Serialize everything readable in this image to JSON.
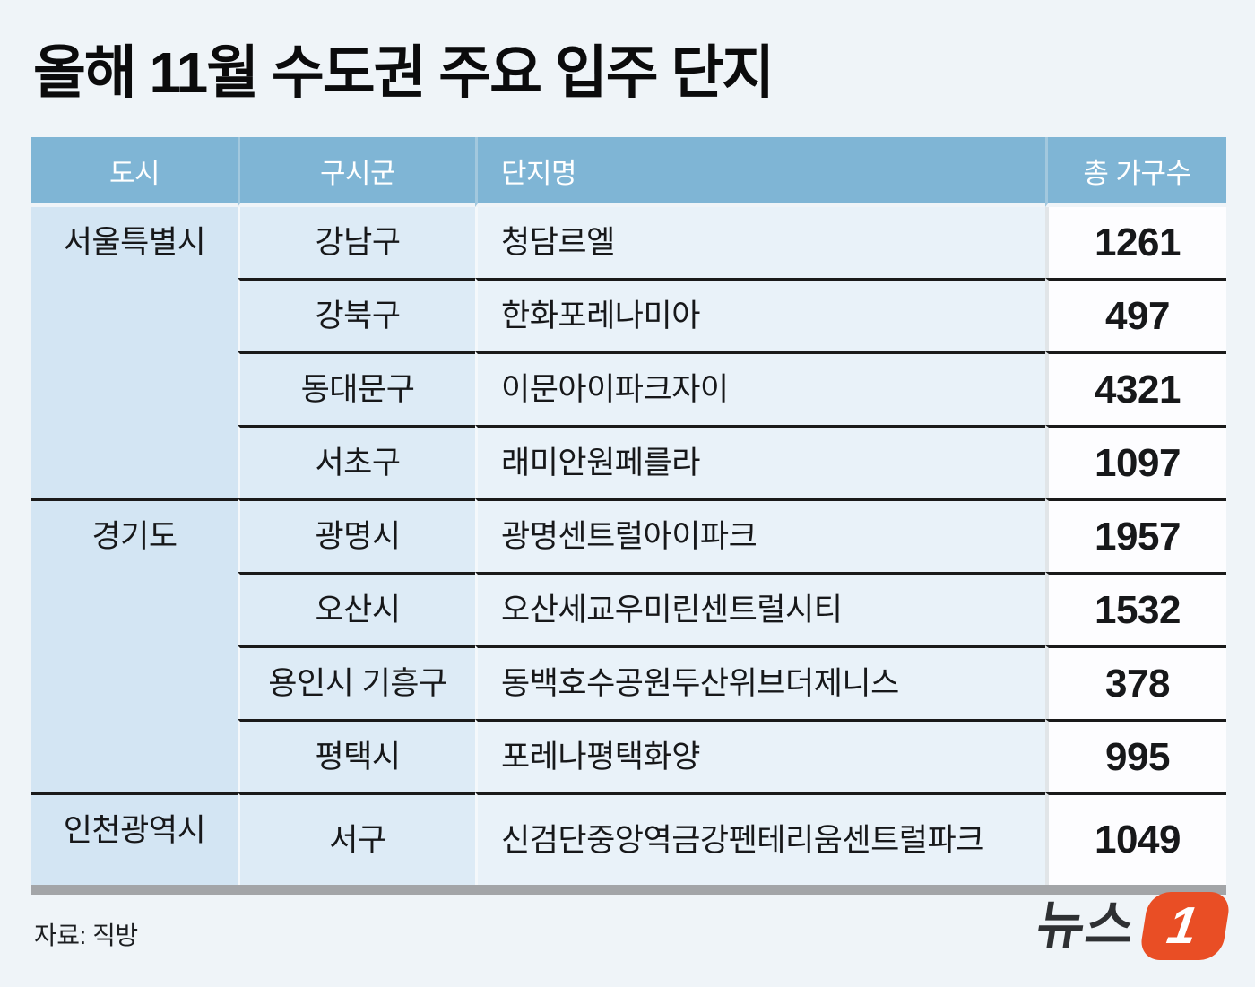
{
  "page": {
    "title": "올해 11월 수도권 주요 입주 단지",
    "source": "자료: 직방"
  },
  "chart_data": {
    "type": "table",
    "title": "올해 11월 수도권 주요 입주 단지",
    "columns": [
      "도시",
      "구시군",
      "단지명",
      "총 가구수"
    ],
    "rows": [
      [
        "서울특별시",
        "강남구",
        "청담르엘",
        1261
      ],
      [
        "서울특별시",
        "강북구",
        "한화포레나미아",
        497
      ],
      [
        "서울특별시",
        "동대문구",
        "이문아이파크자이",
        4321
      ],
      [
        "서울특별시",
        "서초구",
        "래미안원페를라",
        1097
      ],
      [
        "경기도",
        "광명시",
        "광명센트럴아이파크",
        1957
      ],
      [
        "경기도",
        "오산시",
        "오산세교우미린센트럴시티",
        1532
      ],
      [
        "경기도",
        "용인시 기흥구",
        "동백호수공원두산위브더제니스",
        378
      ],
      [
        "경기도",
        "평택시",
        "포레나평택화양",
        995
      ],
      [
        "인천광역시",
        "서구",
        "신검단중앙역금강펜테리움센트럴파크",
        1049
      ]
    ],
    "row_groups": [
      {
        "city": "서울특별시",
        "span": 4
      },
      {
        "city": "경기도",
        "span": 4
      },
      {
        "city": "인천광역시",
        "span": 1
      }
    ],
    "source": "자료: 직방"
  },
  "logo": {
    "name": "뉴스1",
    "text": "뉴스",
    "badge_text": "1"
  },
  "colors": {
    "page_bg": "#eff4f8",
    "header_bg": "#7fb5d5",
    "city_col_bg": "#d3e5f3",
    "district_col_bg": "#ddebf6",
    "complex_col_bg": "#e9f2f9",
    "count_col_bg": "#fdfdff",
    "row_separator": "#1a1a1a",
    "bottom_bar": "#a3a5a8",
    "logo_badge": "#e94e25",
    "logo_text": "#2e3033"
  }
}
